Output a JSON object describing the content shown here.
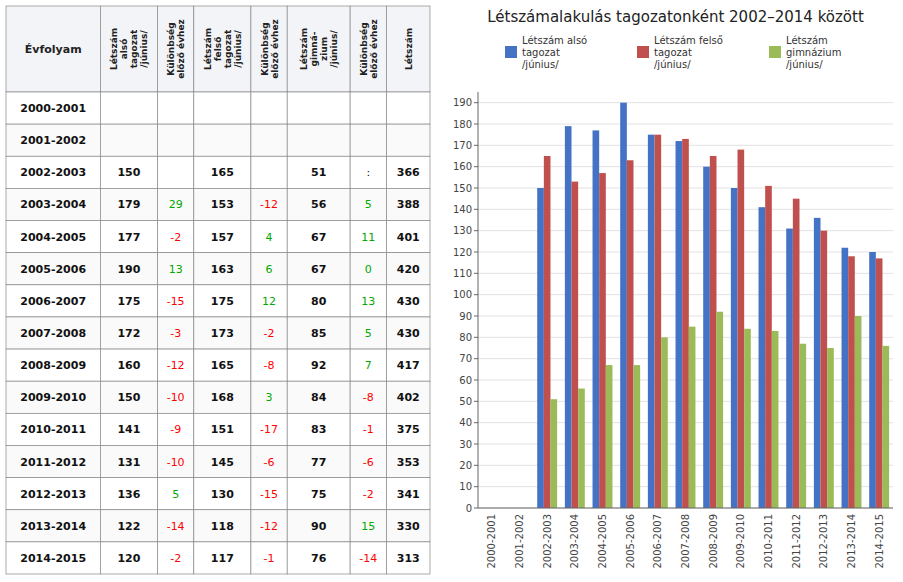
{
  "chart_data": {
    "type": "bar",
    "title": "Létszámalakulás tagozatonként 2002–2014 között",
    "categories": [
      "2000-2001",
      "2001-2002",
      "2002-2003",
      "2003-2004",
      "2004-2005",
      "2005-2006",
      "2006-2007",
      "2007-2008",
      "2008-2009",
      "2009-2010",
      "2010-2011",
      "2011-2012",
      "2012-2013",
      "2013-2014",
      "2014-2015"
    ],
    "series": [
      {
        "name": "Létszám alsó\ntagozat\n/június/",
        "color": "#4472C4",
        "values": [
          null,
          null,
          150,
          179,
          177,
          190,
          175,
          172,
          160,
          150,
          141,
          131,
          136,
          122,
          120
        ]
      },
      {
        "name": "Létszám felső\ntagozat\n/június/",
        "color": "#C0504D",
        "values": [
          null,
          null,
          165,
          153,
          157,
          163,
          175,
          173,
          165,
          168,
          151,
          145,
          130,
          118,
          117
        ]
      },
      {
        "name": "Létszám\ngimnázium\n/június/",
        "color": "#9BBB59",
        "values": [
          null,
          null,
          51,
          56,
          67,
          67,
          80,
          85,
          92,
          84,
          83,
          77,
          75,
          90,
          76
        ]
      }
    ],
    "ylim": [
      0,
      195
    ],
    "yticks": [
      0,
      10,
      20,
      30,
      40,
      50,
      60,
      70,
      80,
      90,
      100,
      110,
      120,
      130,
      140,
      150,
      160,
      170,
      180,
      190
    ],
    "grid": true,
    "legend": "top"
  },
  "table": {
    "colors": {
      "negative": "#FF0000",
      "positive": "#00AA00"
    },
    "columns": [
      {
        "header": "Évfolyam",
        "values": [
          "2000-2001",
          "2001-2002",
          "2002-2003",
          "2003-2004",
          "2004-2005",
          "2005-2006",
          "2006-2007",
          "2007-2008",
          "2008-2009",
          "2009-2010",
          "2010-2011",
          "2011-2012",
          "2012-2013",
          "2013-2014",
          "2014-2015"
        ]
      },
      {
        "header": "Létszám\nalsó\ntagozat\n/június/",
        "values": [
          null,
          null,
          150,
          179,
          177,
          190,
          175,
          172,
          160,
          150,
          141,
          131,
          136,
          122,
          120
        ]
      },
      {
        "header": "Különbség\nelőző évhez",
        "signed": true,
        "values": [
          null,
          null,
          null,
          29,
          -2,
          13,
          -15,
          -3,
          -12,
          -10,
          -9,
          -10,
          5,
          -14,
          -2
        ]
      },
      {
        "header": "Létszám\nfelső\ntagozat\n/június/",
        "values": [
          null,
          null,
          165,
          153,
          157,
          163,
          175,
          173,
          165,
          168,
          151,
          145,
          130,
          118,
          117
        ]
      },
      {
        "header": "Különbség\nelőző évhez",
        "signed": true,
        "values": [
          null,
          null,
          null,
          -12,
          4,
          6,
          12,
          -2,
          -8,
          3,
          -17,
          -6,
          -15,
          -12,
          -1
        ]
      },
      {
        "header": "Létszám\ngimná-\nzium\n/június/",
        "values": [
          null,
          null,
          51,
          56,
          67,
          67,
          80,
          85,
          92,
          84,
          83,
          77,
          75,
          90,
          76
        ]
      },
      {
        "header": "Különbség\nelőző évhez",
        "signed": true,
        "values": [
          null,
          null,
          null,
          5,
          11,
          0,
          13,
          5,
          7,
          -8,
          -1,
          -6,
          -2,
          15,
          -14
        ],
        "value_labels": [
          null,
          null,
          ":",
          "5",
          "11",
          "0",
          "13",
          "5",
          "7",
          "-8",
          "-1",
          "-6",
          "-2",
          "15",
          "-14"
        ]
      },
      {
        "header": "Létszám",
        "values": [
          null,
          null,
          366,
          388,
          401,
          420,
          430,
          430,
          417,
          402,
          375,
          353,
          341,
          330,
          313
        ]
      }
    ]
  }
}
